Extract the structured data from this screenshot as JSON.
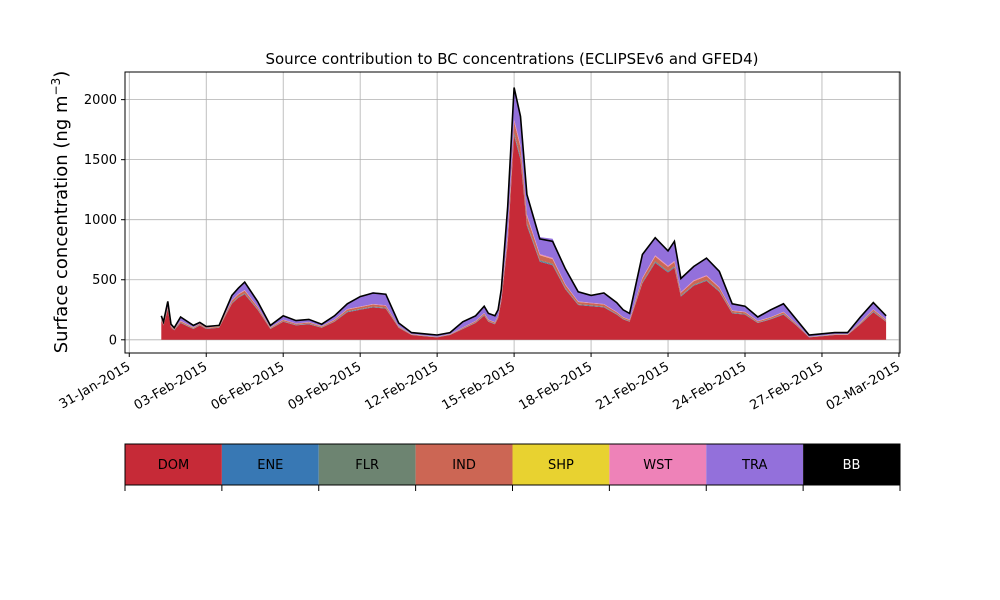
{
  "chart_data": {
    "type": "area",
    "title": "Source contribution to BC concentrations (ECLIPSEv6 and GFED4)",
    "ylabel": "Surface concentration (ng m",
    "ylabel_sup": "−3",
    "ylabel_close": ")",
    "xlabel": "",
    "grid": true,
    "x_unit": "date",
    "xlim": [
      "2015-01-30T20:00",
      "2015-03-02T01:00"
    ],
    "ylim": [
      -110,
      2230
    ],
    "x_ticks": [
      "2015-01-31",
      "2015-02-03",
      "2015-02-06",
      "2015-02-09",
      "2015-02-12",
      "2015-02-15",
      "2015-02-18",
      "2015-02-21",
      "2015-02-24",
      "2015-02-27",
      "2015-03-02"
    ],
    "x_tick_labels": [
      "31-Jan-2015",
      "03-Feb-2015",
      "06-Feb-2015",
      "09-Feb-2015",
      "12-Feb-2015",
      "15-Feb-2015",
      "18-Feb-2015",
      "21-Feb-2015",
      "24-Feb-2015",
      "27-Feb-2015",
      "02-Mar-2015"
    ],
    "y_ticks": [
      0,
      500,
      1000,
      1500,
      2000
    ],
    "y_tick_labels": [
      "0",
      "500",
      "1000",
      "1500",
      "2000"
    ],
    "x": [
      "2015-02-01T06:00",
      "2015-02-01T08:00",
      "2015-02-01T12:00",
      "2015-02-01T15:00",
      "2015-02-01T18:00",
      "2015-02-02T00:00",
      "2015-02-02T12:00",
      "2015-02-02T18:00",
      "2015-02-03T00:00",
      "2015-02-03T12:00",
      "2015-02-04T00:00",
      "2015-02-04T06:00",
      "2015-02-04T12:00",
      "2015-02-05T00:00",
      "2015-02-05T12:00",
      "2015-02-06T00:00",
      "2015-02-06T12:00",
      "2015-02-07T00:00",
      "2015-02-07T12:00",
      "2015-02-08T00:00",
      "2015-02-08T12:00",
      "2015-02-09T00:00",
      "2015-02-09T12:00",
      "2015-02-10T00:00",
      "2015-02-10T12:00",
      "2015-02-11T00:00",
      "2015-02-11T12:00",
      "2015-02-12T00:00",
      "2015-02-12T12:00",
      "2015-02-13T00:00",
      "2015-02-13T12:00",
      "2015-02-13T20:00",
      "2015-02-14T00:00",
      "2015-02-14T06:00",
      "2015-02-14T09:00",
      "2015-02-14T12:00",
      "2015-02-14T18:00",
      "2015-02-15T00:00",
      "2015-02-15T06:00",
      "2015-02-15T12:00",
      "2015-02-16T00:00",
      "2015-02-16T12:00",
      "2015-02-17T00:00",
      "2015-02-17T12:00",
      "2015-02-18T00:00",
      "2015-02-18T12:00",
      "2015-02-19T00:00",
      "2015-02-19T06:00",
      "2015-02-19T12:00",
      "2015-02-20T00:00",
      "2015-02-20T12:00",
      "2015-02-21T00:00",
      "2015-02-21T06:00",
      "2015-02-21T12:00",
      "2015-02-22T00:00",
      "2015-02-22T12:00",
      "2015-02-23T00:00",
      "2015-02-23T12:00",
      "2015-02-24T00:00",
      "2015-02-24T12:00",
      "2015-02-25T00:00",
      "2015-02-25T12:00",
      "2015-02-26T00:00",
      "2015-02-26T12:00",
      "2015-02-27T00:00",
      "2015-02-27T12:00",
      "2015-02-28T00:00",
      "2015-02-28T12:00",
      "2015-03-01T00:00",
      "2015-03-01T12:00"
    ],
    "series": [
      {
        "name": "DOM",
        "color": "#c62a37",
        "values": [
          160,
          120,
          250,
          100,
          80,
          140,
          90,
          120,
          90,
          100,
          300,
          350,
          380,
          250,
          90,
          150,
          120,
          130,
          100,
          150,
          230,
          250,
          270,
          260,
          100,
          40,
          30,
          20,
          40,
          90,
          140,
          200,
          150,
          130,
          180,
          320,
          800,
          1700,
          1500,
          950,
          650,
          620,
          420,
          290,
          280,
          270,
          210,
          170,
          150,
          470,
          640,
          560,
          600,
          360,
          450,
          490,
          400,
          220,
          210,
          140,
          170,
          210,
          120,
          20,
          30,
          40,
          40,
          130,
          230,
          150
        ]
      },
      {
        "name": "ENE",
        "color": "#3878b4",
        "values": [
          2,
          2,
          3,
          2,
          2,
          2,
          2,
          2,
          2,
          2,
          3,
          3,
          3,
          3,
          2,
          2,
          2,
          2,
          2,
          2,
          3,
          3,
          3,
          3,
          2,
          1,
          1,
          1,
          1,
          2,
          2,
          3,
          2,
          2,
          2,
          4,
          8,
          10,
          10,
          8,
          6,
          6,
          4,
          3,
          3,
          3,
          3,
          2,
          2,
          4,
          6,
          5,
          5,
          4,
          4,
          4,
          4,
          3,
          3,
          2,
          2,
          3,
          2,
          1,
          1,
          1,
          1,
          2,
          3,
          2
        ]
      },
      {
        "name": "FLR",
        "color": "#6d8471",
        "values": [
          3,
          3,
          4,
          3,
          2,
          3,
          2,
          3,
          2,
          2,
          4,
          4,
          4,
          4,
          2,
          3,
          3,
          3,
          2,
          3,
          4,
          4,
          4,
          4,
          2,
          1,
          1,
          1,
          1,
          2,
          3,
          4,
          3,
          3,
          3,
          5,
          10,
          15,
          15,
          12,
          8,
          8,
          6,
          4,
          4,
          4,
          3,
          3,
          3,
          6,
          8,
          7,
          7,
          5,
          6,
          6,
          5,
          4,
          4,
          3,
          3,
          4,
          3,
          1,
          1,
          1,
          1,
          3,
          4,
          3
        ]
      },
      {
        "name": "IND",
        "color": "#cc6654",
        "values": [
          10,
          8,
          15,
          8,
          6,
          10,
          7,
          8,
          6,
          7,
          18,
          20,
          22,
          15,
          7,
          10,
          8,
          9,
          7,
          10,
          15,
          16,
          17,
          16,
          7,
          3,
          2,
          2,
          3,
          6,
          9,
          12,
          10,
          9,
          12,
          20,
          50,
          90,
          80,
          60,
          40,
          38,
          26,
          18,
          17,
          17,
          13,
          11,
          10,
          30,
          40,
          35,
          36,
          22,
          28,
          30,
          25,
          14,
          13,
          9,
          11,
          13,
          8,
          2,
          2,
          3,
          3,
          8,
          14,
          9
        ]
      },
      {
        "name": "SHP",
        "color": "#e8d230",
        "values": [
          1,
          1,
          1,
          1,
          1,
          1,
          1,
          1,
          1,
          1,
          1,
          1,
          1,
          1,
          1,
          1,
          1,
          1,
          1,
          1,
          1,
          1,
          1,
          1,
          1,
          1,
          1,
          1,
          1,
          1,
          1,
          1,
          1,
          1,
          1,
          1,
          2,
          2,
          2,
          2,
          2,
          2,
          1,
          1,
          1,
          1,
          1,
          1,
          1,
          1,
          2,
          2,
          2,
          1,
          1,
          1,
          1,
          1,
          1,
          1,
          1,
          1,
          1,
          1,
          1,
          1,
          1,
          1,
          1,
          1
        ]
      },
      {
        "name": "WST",
        "color": "#ee82b8",
        "values": [
          2,
          2,
          3,
          2,
          1,
          2,
          1,
          2,
          1,
          2,
          4,
          4,
          5,
          3,
          1,
          2,
          2,
          2,
          2,
          2,
          3,
          3,
          3,
          3,
          1,
          1,
          1,
          1,
          1,
          1,
          2,
          3,
          2,
          2,
          2,
          4,
          10,
          20,
          15,
          12,
          8,
          8,
          5,
          4,
          4,
          3,
          3,
          2,
          2,
          6,
          8,
          7,
          7,
          5,
          6,
          6,
          5,
          3,
          3,
          2,
          2,
          3,
          2,
          1,
          1,
          1,
          1,
          2,
          3,
          2
        ]
      },
      {
        "name": "TRA",
        "color": "#9370db",
        "values": [
          22,
          14,
          44,
          14,
          9,
          34,
          8,
          10,
          10,
          9,
          44,
          48,
          65,
          48,
          20,
          33,
          26,
          24,
          19,
          33,
          46,
          83,
          99,
          97,
          28,
          13,
          16,
          15,
          14,
          44,
          49,
          59,
          53,
          55,
          50,
          66,
          230,
          262,
          237,
          168,
          141,
          159,
          130,
          82,
          61,
          83,
          78,
          62,
          54,
          190,
          151,
          132,
          163,
          112,
          116,
          148,
          130,
          56,
          47,
          30,
          62,
          74,
          40,
          14,
          14,
          14,
          14,
          43,
          56,
          33
        ]
      },
      {
        "name": "BB",
        "color": "#000000",
        "values": [
          0,
          0,
          0,
          0,
          0,
          0,
          0,
          0,
          0,
          0,
          0,
          0,
          0,
          0,
          0,
          0,
          0,
          0,
          0,
          0,
          0,
          0,
          0,
          0,
          0,
          0,
          0,
          0,
          0,
          0,
          0,
          0,
          0,
          0,
          0,
          0,
          0,
          0,
          0,
          0,
          0,
          0,
          0,
          0,
          0,
          0,
          0,
          0,
          0,
          0,
          0,
          0,
          0,
          0,
          0,
          0,
          0,
          0,
          0,
          0,
          0,
          0,
          0,
          0,
          0,
          0,
          0,
          0,
          0,
          0
        ]
      }
    ],
    "total": [
      200,
      150,
      320,
      130,
      100,
      190,
      120,
      145,
      110,
      120,
      370,
      430,
      480,
      320,
      120,
      200,
      160,
      170,
      130,
      200,
      300,
      360,
      390,
      380,
      140,
      60,
      50,
      40,
      60,
      150,
      200,
      280,
      220,
      200,
      250,
      420,
      1110,
      2100,
      1860,
      1210,
      840,
      820,
      590,
      400,
      370,
      390,
      310,
      250,
      220,
      710,
      850,
      740,
      820,
      510,
      610,
      680,
      570,
      300,
      280,
      190,
      250,
      300,
      170,
      40,
      50,
      60,
      60,
      190,
      310,
      200
    ],
    "legend": [
      "DOM",
      "ENE",
      "FLR",
      "IND",
      "SHP",
      "WST",
      "TRA",
      "BB"
    ],
    "legend_placement": "bottom"
  }
}
